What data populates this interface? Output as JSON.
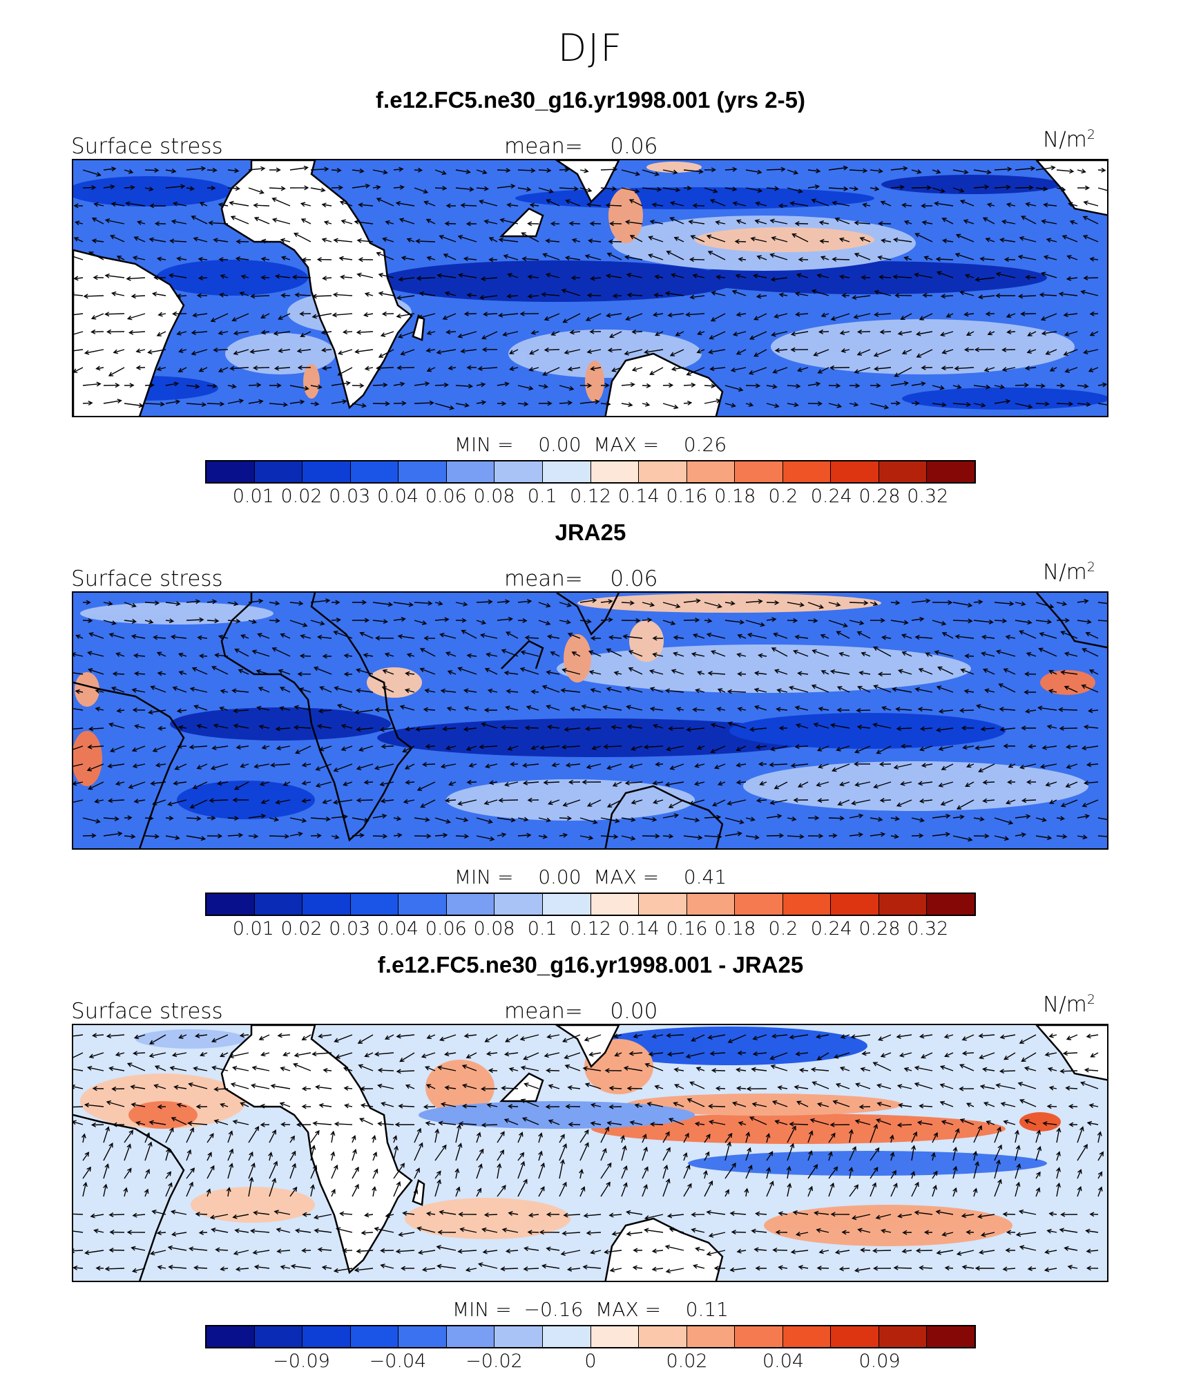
{
  "header": {
    "season": "DJF"
  },
  "colorbars": {
    "full": {
      "colors": [
        "#08108c",
        "#0a2bb5",
        "#0d3fd6",
        "#1b55e8",
        "#3b72ef",
        "#789ff3",
        "#a9c3f6",
        "#d6e6fb",
        "#fde7d8",
        "#fbc8ab",
        "#f8a57f",
        "#f57a4f",
        "#ee5426",
        "#dd3512",
        "#b5220c",
        "#850806"
      ],
      "labels": [
        "0.01",
        "0.02",
        "0.03",
        "0.04",
        "0.06",
        "0.08",
        "0.1",
        "0.12",
        "0.14",
        "0.16",
        "0.18",
        "0.2",
        "0.24",
        "0.28",
        "0.32"
      ]
    },
    "diff": {
      "colors": [
        "#08108c",
        "#0a2bb5",
        "#0d3fd6",
        "#1b55e8",
        "#3b72ef",
        "#789ff3",
        "#a9c3f6",
        "#d6e6fb",
        "#fde7d8",
        "#fbc8ab",
        "#f8a57f",
        "#f57a4f",
        "#ee5426",
        "#dd3512",
        "#b5220c",
        "#850806"
      ],
      "labels": [
        "−0.09",
        "−0.04",
        "−0.02",
        "0",
        "0.02",
        "0.04",
        "0.09"
      ]
    }
  },
  "panels": [
    {
      "title": "f.e12.FC5.ne30_g16.yr1998.001 (yrs 2-5)",
      "left_label": "Surface stress",
      "mean_label": "mean=",
      "mean_value": "0.06",
      "unit": "N/m",
      "unit_sup": "2",
      "min_label": "MIN =",
      "min_value": "0.00",
      "max_label": "MAX =",
      "max_value": "0.26"
    },
    {
      "title": "JRA25",
      "left_label": "Surface stress",
      "mean_label": "mean=",
      "mean_value": "0.06",
      "unit": "N/m",
      "unit_sup": "2",
      "min_label": "MIN =",
      "min_value": "0.00",
      "max_label": "MAX =",
      "max_value": "0.41"
    },
    {
      "title": "f.e12.FC5.ne30_g16.yr1998.001 - JRA25",
      "left_label": "Surface stress",
      "mean_label": "mean=",
      "mean_value": "0.00",
      "unit": "N/m",
      "unit_sup": "2",
      "min_label": "MIN =",
      "min_value": "−0.16",
      "max_label": "MAX =",
      "max_value": "0.11"
    }
  ],
  "chart_data": [
    {
      "type": "heatmap",
      "title": "f.e12.FC5.ne30_g16.yr1998.001 (yrs 2-5)",
      "variable": "Surface stress",
      "units": "N/m2",
      "mean": 0.06,
      "min": 0.0,
      "max": 0.26,
      "contour_levels": [
        0.01,
        0.02,
        0.03,
        0.04,
        0.06,
        0.08,
        0.1,
        0.12,
        0.14,
        0.16,
        0.18,
        0.2,
        0.24,
        0.28,
        0.32
      ],
      "overlay": "wind stress vectors",
      "land": "masked (white)"
    },
    {
      "type": "heatmap",
      "title": "JRA25",
      "variable": "Surface stress",
      "units": "N/m2",
      "mean": 0.06,
      "min": 0.0,
      "max": 0.41,
      "contour_levels": [
        0.01,
        0.02,
        0.03,
        0.04,
        0.06,
        0.08,
        0.1,
        0.12,
        0.14,
        0.16,
        0.18,
        0.2,
        0.24,
        0.28,
        0.32
      ],
      "overlay": "wind stress vectors",
      "land": "filled"
    },
    {
      "type": "heatmap",
      "title": "f.e12.FC5.ne30_g16.yr1998.001 - JRA25",
      "variable": "Surface stress",
      "units": "N/m2",
      "mean": 0.0,
      "min": -0.16,
      "max": 0.11,
      "contour_levels_labeled": [
        -0.09,
        -0.04,
        -0.02,
        0,
        0.02,
        0.04,
        0.09
      ],
      "overlay": "wind stress difference vectors",
      "land": "masked (white)"
    }
  ]
}
